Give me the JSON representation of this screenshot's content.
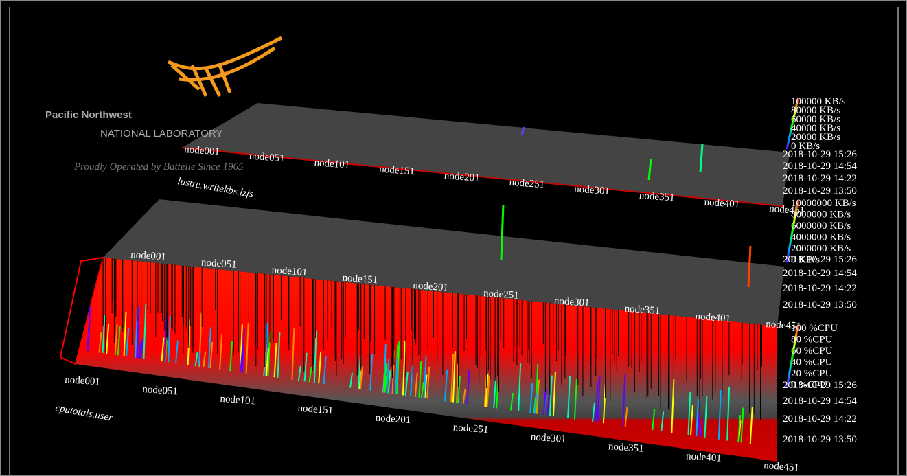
{
  "logo": {
    "name": "Pacific Northwest",
    "subtitle": "NATIONAL LABORATORY",
    "tagline": "Proudly Operated by Battelle Since 1965"
  },
  "panels": [
    {
      "title": "lustre.writekbs.lzfs",
      "nodes": [
        "node001",
        "node051",
        "node101",
        "node151",
        "node201",
        "node251",
        "node301",
        "node351",
        "node401",
        "node451"
      ],
      "legend": [
        "100000 KB/s",
        "80000 KB/s",
        "60000 KB/s",
        "40000 KB/s",
        "20000 KB/s",
        "0 KB/s"
      ],
      "times": [
        "2018-10-29 15:26",
        "2018-10-29 14:54",
        "2018-10-29 14:22",
        "2018-10-29 13:50"
      ]
    },
    {
      "nodes": [
        "node001",
        "node051",
        "node101",
        "node151",
        "node201",
        "node251",
        "node301",
        "node351",
        "node401",
        "node451"
      ],
      "legend": [
        "10000000 KB/s",
        "8000000 KB/s",
        "6000000 KB/s",
        "4000000 KB/s",
        "2000000 KB/s",
        "0 KB/s"
      ],
      "times": [
        "2018-10-29 15:26",
        "2018-10-29 14:54",
        "2018-10-29 14:22",
        "2018-10-29 13:50"
      ]
    },
    {
      "title": "cputotals.user",
      "nodes": [
        "node001",
        "node051",
        "node101",
        "node151",
        "node201",
        "node251",
        "node301",
        "node351",
        "node401",
        "node451"
      ],
      "legend": [
        "100 %CPU",
        "80 %CPU",
        "60 %CPU",
        "40 %CPU",
        "20 %CPU",
        "0 %CPU"
      ],
      "times": [
        "2018-10-29 15:26",
        "2018-10-29 14:54",
        "2018-10-29 14:22",
        "2018-10-29 13:50"
      ]
    }
  ]
}
